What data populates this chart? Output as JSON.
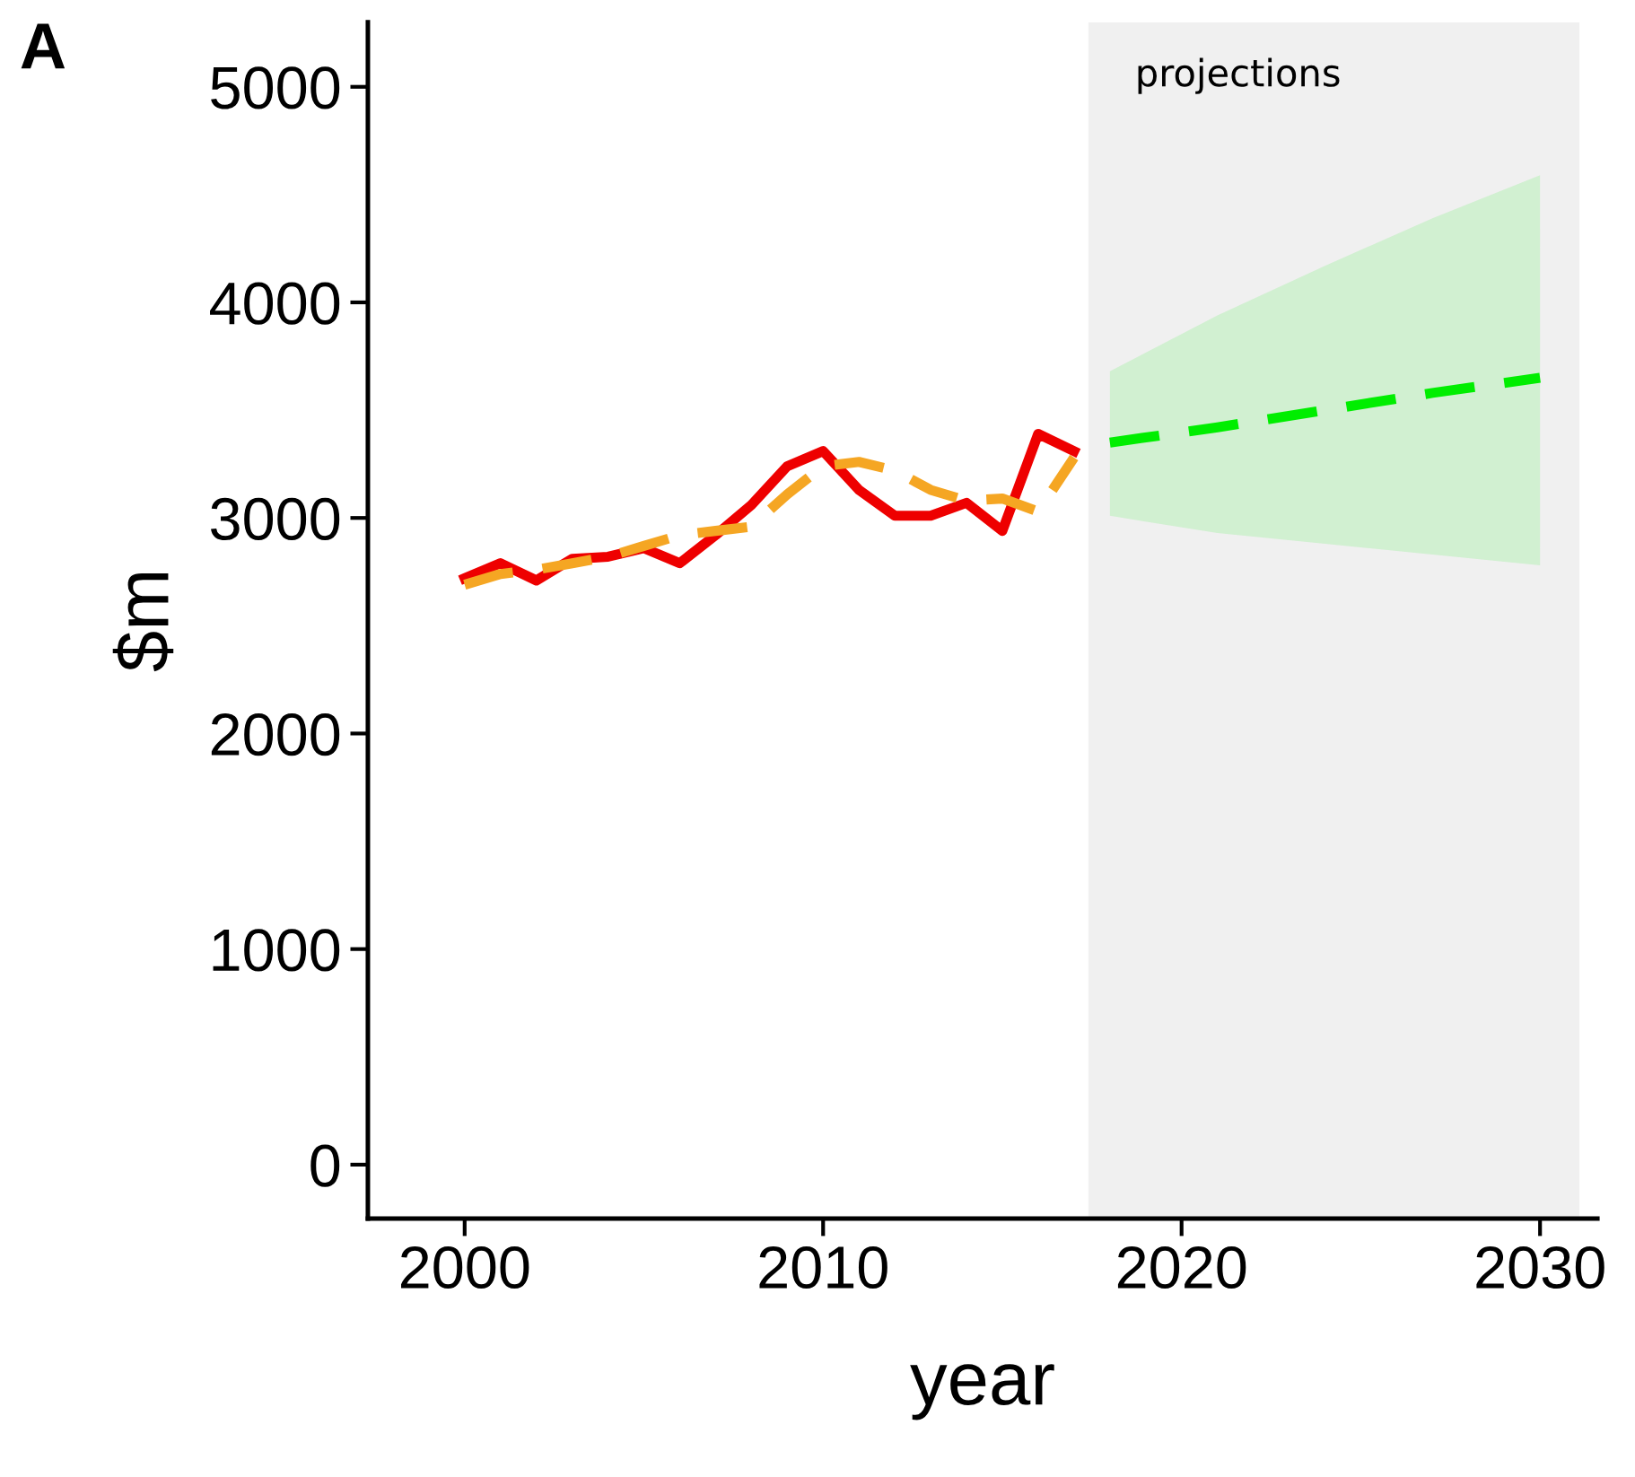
{
  "chart_data": {
    "type": "line",
    "xlabel": "year",
    "ylabel": "$m",
    "annotations": [
      "A"
    ],
    "xlim": [
      1997.3,
      2031.6
    ],
    "xticks": [
      2000,
      2010,
      2020,
      2030
    ],
    "ylim": [
      -250,
      5300
    ],
    "yticks": [
      0,
      1000,
      2000,
      3000,
      4000,
      5000
    ],
    "grid": false,
    "bands": [
      {
        "axis": "x",
        "from": 2017.4,
        "to": 2031.1,
        "label": "projections",
        "color": "#f0f0f0"
      }
    ],
    "series": [
      {
        "color": "#ee0000",
        "line_style": "solid",
        "x": [
          2000,
          2001,
          2002,
          2003,
          2004,
          2005,
          2006,
          2007,
          2008,
          2009,
          2010,
          2011,
          2012,
          2013,
          2014,
          2015,
          2016,
          2017
        ],
        "values": [
          2720,
          2790,
          2710,
          2810,
          2820,
          2860,
          2790,
          2920,
          3060,
          3240,
          3310,
          3130,
          3010,
          3010,
          3070,
          2940,
          3390,
          3310
        ]
      },
      {
        "color": "#f5a623",
        "line_style": "dashed",
        "x": [
          2000,
          2001,
          2002,
          2003,
          2004,
          2005,
          2006,
          2007,
          2008,
          2009,
          2010,
          2011,
          2012,
          2013,
          2014,
          2015,
          2016,
          2017
        ],
        "values": [
          2690,
          2740,
          2760,
          2790,
          2820,
          2870,
          2920,
          2940,
          2960,
          3110,
          3240,
          3260,
          3220,
          3130,
          3080,
          3090,
          3030,
          3280
        ]
      },
      {
        "color": "#00ee00",
        "line_style": "dashed",
        "x": [
          2018,
          2021,
          2024,
          2027,
          2030
        ],
        "values": [
          3350,
          3420,
          3500,
          3580,
          3650
        ],
        "lower": [
          3010,
          2930,
          2880,
          2830,
          2780
        ],
        "upper": [
          3680,
          3940,
          4170,
          4390,
          4590
        ]
      }
    ]
  }
}
